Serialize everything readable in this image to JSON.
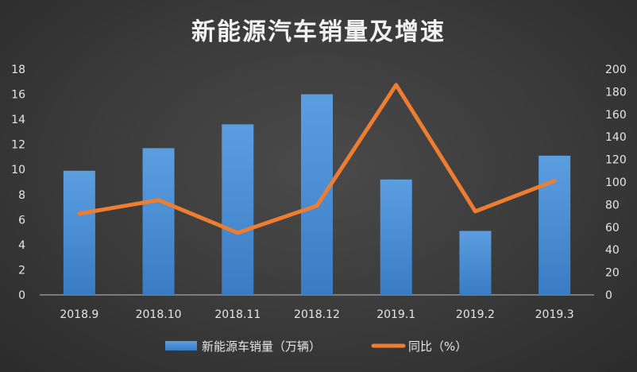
{
  "chart_data": {
    "type": "bar",
    "title": "新能源汽车销量及增速",
    "categories": [
      "2018.9",
      "2018.10",
      "2018.11",
      "2018.12",
      "2019.1",
      "2019.2",
      "2019.3"
    ],
    "series": [
      {
        "name": "新能源车销量（万辆）",
        "type": "bar",
        "axis": "left",
        "values": [
          9.9,
          11.7,
          13.6,
          16.0,
          9.2,
          5.1,
          11.1
        ],
        "color": "#5b9bd5"
      },
      {
        "name": "同比（%）",
        "type": "line",
        "axis": "right",
        "values": [
          72,
          84,
          55,
          79,
          186,
          74,
          101
        ],
        "color": "#ed7d31"
      }
    ],
    "y_left": {
      "min": 0,
      "max": 18,
      "ticks": [
        "0",
        "2",
        "4",
        "6",
        "8",
        "10",
        "12",
        "14",
        "16",
        "18"
      ]
    },
    "y_right": {
      "min": 0,
      "max": 200,
      "ticks": [
        "0",
        "20",
        "40",
        "60",
        "80",
        "100",
        "120",
        "140",
        "160",
        "180",
        "200"
      ]
    },
    "grid": false,
    "legend": "bottom"
  }
}
